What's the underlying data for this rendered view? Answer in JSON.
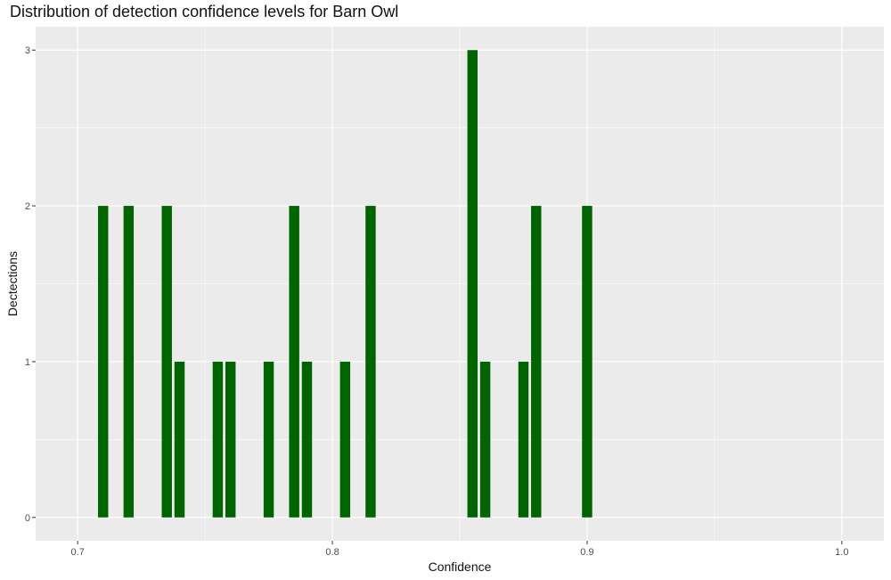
{
  "chart_data": {
    "type": "bar",
    "title": "Distribution of detection confidence levels for Barn Owl",
    "xlabel": "Confidence",
    "ylabel": "Dectections",
    "xlim": [
      0.6835,
      1.0165
    ],
    "ylim": [
      -0.15,
      3.15
    ],
    "x_ticks": [
      0.7,
      0.8,
      0.9,
      1.0
    ],
    "x_tick_labels": [
      "0.7",
      "0.8",
      "0.9",
      "1.0"
    ],
    "y_ticks": [
      0,
      1,
      2,
      3
    ],
    "y_tick_labels": [
      "0",
      "1",
      "2",
      "3"
    ],
    "bar_width": 0.004,
    "bar_color": "#006400",
    "panel_background": "#EBEBEB",
    "grid": true,
    "bars": [
      {
        "x": 0.71,
        "y": 2
      },
      {
        "x": 0.72,
        "y": 2
      },
      {
        "x": 0.735,
        "y": 2
      },
      {
        "x": 0.74,
        "y": 1
      },
      {
        "x": 0.755,
        "y": 1
      },
      {
        "x": 0.76,
        "y": 1
      },
      {
        "x": 0.775,
        "y": 1
      },
      {
        "x": 0.785,
        "y": 2
      },
      {
        "x": 0.79,
        "y": 1
      },
      {
        "x": 0.805,
        "y": 1
      },
      {
        "x": 0.815,
        "y": 2
      },
      {
        "x": 0.855,
        "y": 3
      },
      {
        "x": 0.86,
        "y": 1
      },
      {
        "x": 0.875,
        "y": 1
      },
      {
        "x": 0.88,
        "y": 2
      },
      {
        "x": 0.9,
        "y": 2
      }
    ]
  }
}
